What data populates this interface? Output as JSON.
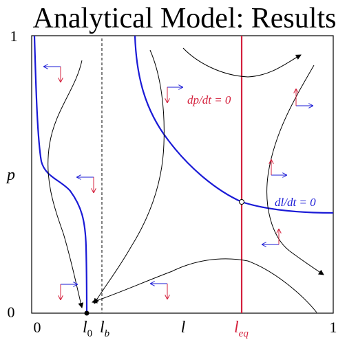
{
  "title": "Analytical Model: Results",
  "axes": {
    "y_top": "1",
    "y_bottom": "0",
    "y_label": "p",
    "x_left": "0",
    "x_right": "1",
    "x_label": "l",
    "l0_main": "l",
    "l0_sub": "0",
    "lb_main": "l",
    "lb_sub": "b",
    "leq_main": "l",
    "leq_sub": "eq"
  },
  "labels": {
    "dp_dt": "dp/dt = 0",
    "dl_dt": "dl/dt = 0"
  },
  "colors": {
    "nullcline_l": "#1a1ad6",
    "nullcline_p": "#d4203c",
    "arrow_blue": "#1a1ad6",
    "arrow_red": "#d4203c",
    "trajectory": "#000000"
  }
}
